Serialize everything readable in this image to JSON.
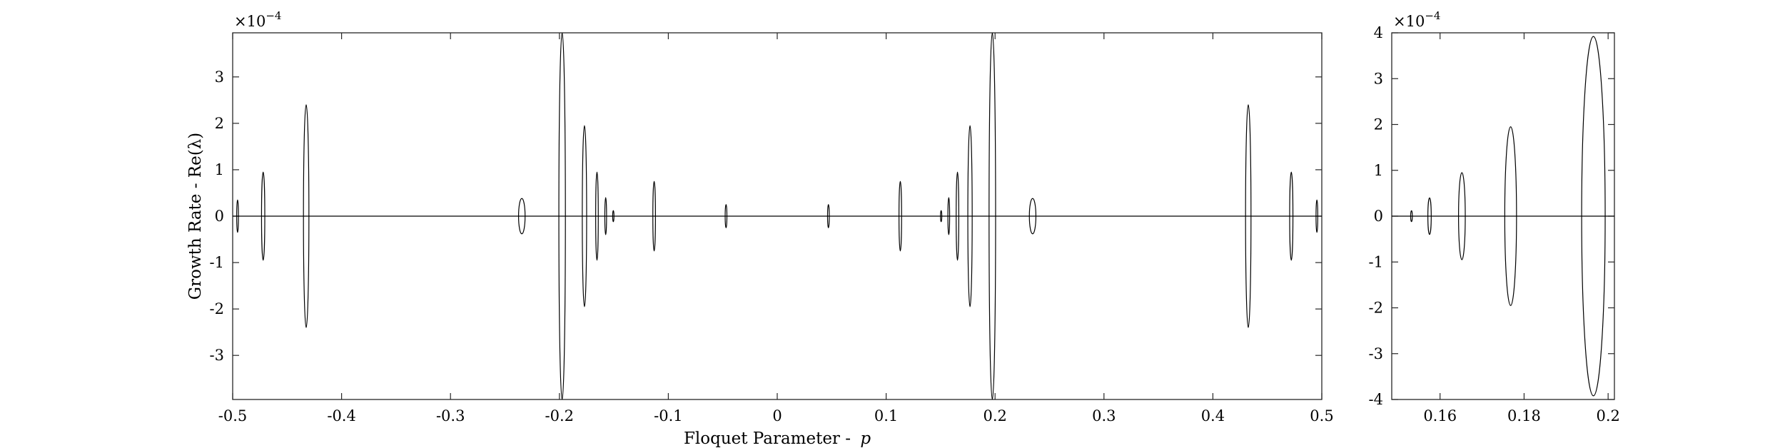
{
  "chart_data": [
    {
      "type": "line",
      "title": "",
      "xlabel": "Floquet Parameter - ",
      "xlabel_var": "p",
      "ylabel": "Growth Rate - Re(λ)",
      "y_exponent_base": "×10",
      "y_exponent_power": "−4",
      "xlim": [
        -0.5,
        0.5
      ],
      "ylim": [
        -3.95,
        3.95
      ],
      "x_ticks": [
        -0.5,
        -0.4,
        -0.3,
        -0.2,
        -0.1,
        0,
        0.1,
        0.2,
        0.3,
        0.4,
        0.5
      ],
      "x_tick_labels": [
        "-0.5",
        "-0.4",
        "-0.3",
        "-0.2",
        "-0.1",
        "0",
        "0.1",
        "0.2",
        "0.3",
        "0.4",
        "0.5"
      ],
      "y_ticks": [
        -3,
        -2,
        -1,
        0,
        1,
        2,
        3
      ],
      "y_tick_labels": [
        "-3",
        "-2",
        "-1",
        "0",
        "1",
        "2",
        "3"
      ],
      "grid": false,
      "baseline": {
        "x": [
          -0.5,
          0.5
        ],
        "y": 0
      },
      "bubbles": [
        {
          "center": -0.4955,
          "half_width": 0.0008,
          "height": 0.35
        },
        {
          "center": -0.472,
          "half_width": 0.0015,
          "height": 0.95
        },
        {
          "center": -0.4325,
          "half_width": 0.0025,
          "height": 2.4
        },
        {
          "center": -0.2345,
          "half_width": 0.003,
          "height": 0.38
        },
        {
          "center": -0.1975,
          "half_width": 0.003,
          "height": 3.95
        },
        {
          "center": -0.177,
          "half_width": 0.002,
          "height": 1.95
        },
        {
          "center": -0.1655,
          "half_width": 0.0012,
          "height": 0.95
        },
        {
          "center": -0.1575,
          "half_width": 0.0008,
          "height": 0.4
        },
        {
          "center": -0.1505,
          "half_width": 0.0006,
          "height": 0.12
        },
        {
          "center": -0.113,
          "half_width": 0.0012,
          "height": 0.75
        },
        {
          "center": -0.047,
          "half_width": 0.0008,
          "height": 0.25
        },
        {
          "center": 0.047,
          "half_width": 0.0008,
          "height": 0.25
        },
        {
          "center": 0.113,
          "half_width": 0.0012,
          "height": 0.75
        },
        {
          "center": 0.1505,
          "half_width": 0.0006,
          "height": 0.12
        },
        {
          "center": 0.1575,
          "half_width": 0.0008,
          "height": 0.4
        },
        {
          "center": 0.1655,
          "half_width": 0.0012,
          "height": 0.95
        },
        {
          "center": 0.177,
          "half_width": 0.002,
          "height": 1.95
        },
        {
          "center": 0.1975,
          "half_width": 0.003,
          "height": 3.95
        },
        {
          "center": 0.2345,
          "half_width": 0.003,
          "height": 0.38
        },
        {
          "center": 0.4325,
          "half_width": 0.0025,
          "height": 2.4
        },
        {
          "center": 0.472,
          "half_width": 0.0015,
          "height": 0.95
        },
        {
          "center": 0.4955,
          "half_width": 0.0008,
          "height": 0.35
        }
      ]
    },
    {
      "type": "line",
      "title": "",
      "xlabel": "",
      "ylabel": "",
      "y_exponent_base": "×10",
      "y_exponent_power": "−4",
      "xlim": [
        0.1485,
        0.2015
      ],
      "ylim": [
        -4,
        4
      ],
      "x_ticks": [
        0.16,
        0.18,
        0.2
      ],
      "x_tick_labels": [
        "0.16",
        "0.18",
        "0.2"
      ],
      "y_ticks": [
        -4,
        -3,
        -2,
        -1,
        0,
        1,
        2,
        3,
        4
      ],
      "y_tick_labels": [
        "-4",
        "-3",
        "-2",
        "-1",
        "0",
        "1",
        "2",
        "3",
        "4"
      ],
      "grid": false,
      "baseline": {
        "x": [
          0.1485,
          0.2015
        ],
        "y": 0
      },
      "bubbles": [
        {
          "center": 0.1532,
          "half_width": 0.0002,
          "height": 0.12
        },
        {
          "center": 0.1575,
          "half_width": 0.0004,
          "height": 0.4
        },
        {
          "center": 0.1652,
          "half_width": 0.0008,
          "height": 0.95
        },
        {
          "center": 0.1768,
          "half_width": 0.0014,
          "height": 1.95
        },
        {
          "center": 0.1965,
          "half_width": 0.0028,
          "height": 3.92
        }
      ]
    }
  ]
}
